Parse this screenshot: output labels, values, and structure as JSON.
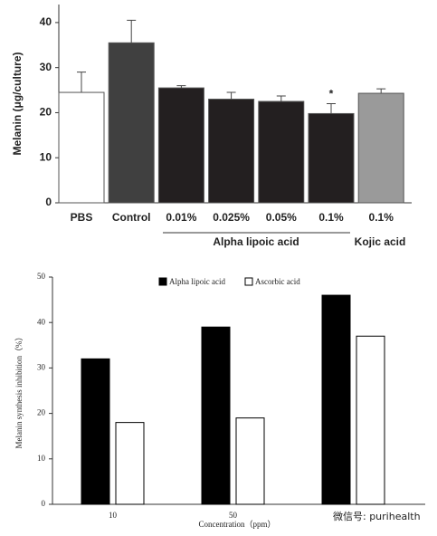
{
  "chart_data": [
    {
      "type": "bar",
      "y_label": "Melanin (μg/culture)",
      "categories": [
        "PBS",
        "Control",
        "0.01%",
        "0.025%",
        "0.05%",
        "0.1%",
        "0.1%"
      ],
      "values": [
        24.5,
        35.5,
        25.5,
        23,
        22.5,
        19.8,
        24.3
      ],
      "errors": [
        4.5,
        5,
        0.5,
        1.5,
        1.2,
        2.2,
        1
      ],
      "colors": [
        "#ffffff",
        "#404040",
        "#231f20",
        "#231f20",
        "#231f20",
        "#231f20",
        "#9a9a9a"
      ],
      "ylim": [
        0,
        44
      ],
      "yticks": [
        0,
        10,
        20,
        30,
        40
      ],
      "annotation": "*",
      "group_labels": [
        "Alpha lipoic acid",
        "Kojic acid"
      ]
    },
    {
      "type": "grouped_bar",
      "x_label": "Concentration（ppm）",
      "y_label": "Melanin synthesis inhibition（%）",
      "categories": [
        "10",
        "50",
        null
      ],
      "series": [
        {
          "name": "Alpha lipoic acid",
          "color": "#000000",
          "values": [
            32,
            39,
            46
          ]
        },
        {
          "name": "Ascorbic acid",
          "color": "#ffffff",
          "values": [
            18,
            19,
            37
          ]
        }
      ],
      "ylim": [
        0,
        50
      ],
      "yticks": [
        0,
        10,
        20,
        30,
        40,
        50
      ]
    }
  ],
  "watermark": "微信号: purihealth"
}
